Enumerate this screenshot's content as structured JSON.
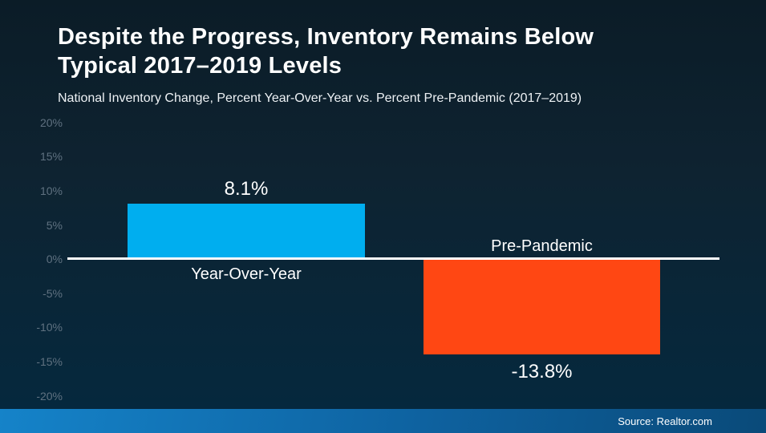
{
  "chart_data": {
    "type": "bar",
    "title": "Despite the Progress, Inventory Remains Below Typical 2017–2019 Levels",
    "title_lines": [
      "Despite the Progress, Inventory Remains Below",
      "Typical 2017–2019 Levels"
    ],
    "subtitle": "National Inventory Change, Percent Year-Over-Year vs. Percent Pre-Pandemic (2017–2019)",
    "categories": [
      "Year-Over-Year",
      "Pre-Pandemic"
    ],
    "values": [
      8.1,
      -13.8
    ],
    "value_labels": [
      "8.1%",
      "-13.8%"
    ],
    "series_colors": [
      "#00AEEF",
      "#FF4713"
    ],
    "ylim": [
      -20,
      20
    ],
    "ytick_interval": 5,
    "yticks": [
      "20%",
      "15%",
      "10%",
      "5%",
      "0%",
      "-5%",
      "-10%",
      "-15%",
      "-20%"
    ],
    "grid": false,
    "legend_position": "none",
    "baseline_color": "#FFFFFF",
    "axis_text_color": "#5F7180"
  },
  "footer": {
    "source": "Source: Realtor.com",
    "bar_gradient_from": "#1583C9",
    "bar_gradient_to": "#0A4A79"
  },
  "colors": {
    "background_top": "#0B1C27",
    "background_bottom": "#04293F",
    "title_text": "#FFFFFF"
  }
}
